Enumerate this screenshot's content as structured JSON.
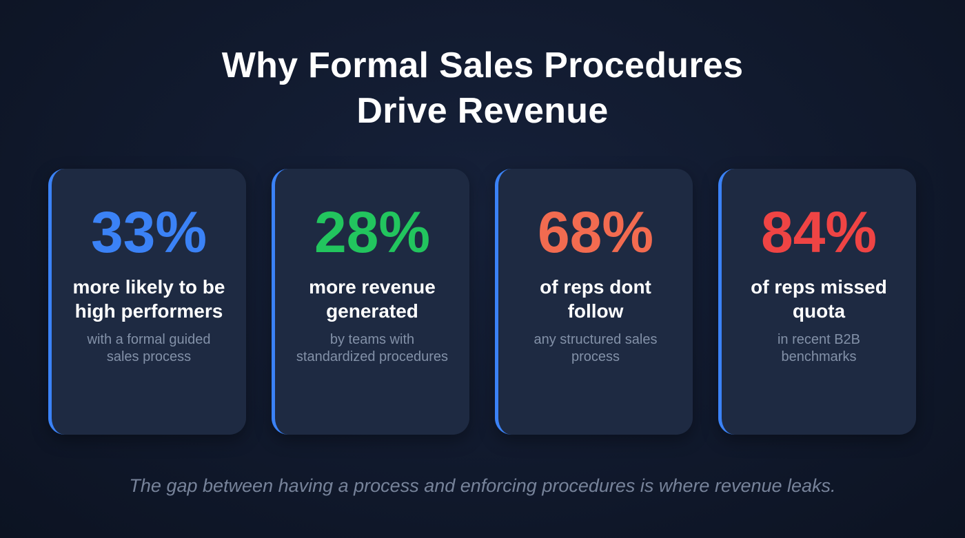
{
  "title": {
    "line1": "Why Formal Sales Procedures",
    "line2": "Drive Revenue"
  },
  "accent": "#3b82f6",
  "cards": [
    {
      "value": "33%",
      "color": "#3b82f6",
      "headline": "more likely to be high performers",
      "detail": "with a formal guided sales process"
    },
    {
      "value": "28%",
      "color": "#22c55e",
      "headline": "more revenue generated",
      "detail": "by teams with standardized procedures"
    },
    {
      "value": "68%",
      "color": "#f26b50",
      "headline": "of reps dont follow",
      "detail": "any structured sales process"
    },
    {
      "value": "84%",
      "color": "#ef4444",
      "headline": "of reps missed quota",
      "detail": "in recent B2B benchmarks"
    }
  ],
  "footer": "The gap between having a process and enforcing procedures is where revenue leaks."
}
